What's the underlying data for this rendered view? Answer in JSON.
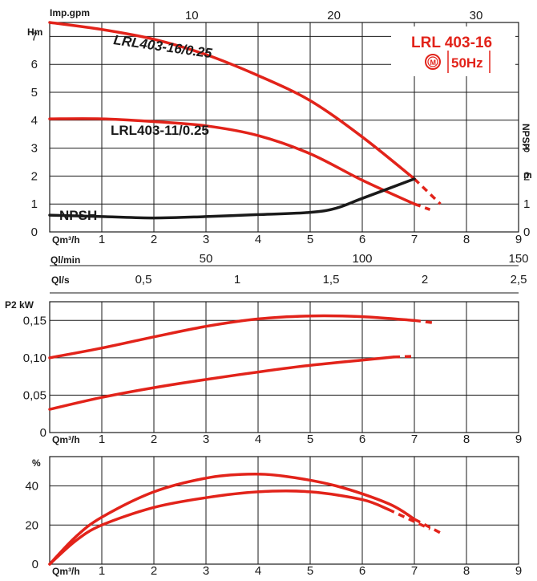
{
  "badge": {
    "model": "LRL 403-16",
    "frequency": "50Hz",
    "motor_symbol": "M"
  },
  "chart_data": [
    {
      "type": "line",
      "panel": "head",
      "ylabel": "Hm",
      "xlabel": "Qm³/h",
      "top_axis_label": "Imp.gpm",
      "top_axis_ticks": [
        "10",
        "20",
        "30"
      ],
      "right_axis_label_vertical": "NPSH",
      "right_axis_unit": "m",
      "right_axis_ticks": [
        "0",
        "1",
        "2",
        "3"
      ],
      "x_ticks": [
        "1",
        "2",
        "3",
        "4",
        "5",
        "6",
        "7",
        "8",
        "9"
      ],
      "y_ticks": [
        "0",
        "1",
        "2",
        "3",
        "4",
        "5",
        "6",
        "7"
      ],
      "xlim": [
        0,
        9
      ],
      "ylim": [
        0,
        7.5
      ],
      "series": [
        {
          "name": "LRL403-16/0.25",
          "x": [
            0,
            1,
            2,
            3,
            4,
            5,
            6,
            7
          ],
          "y": [
            7.5,
            7.25,
            6.9,
            6.35,
            5.6,
            4.7,
            3.4,
            1.9
          ],
          "ext_x": [
            7,
            7.5
          ],
          "ext_y": [
            1.9,
            1.0
          ]
        },
        {
          "name": "LRL403-11/0.25",
          "x": [
            0,
            1,
            2,
            3,
            4,
            5,
            6,
            7
          ],
          "y": [
            4.05,
            4.05,
            3.95,
            3.8,
            3.45,
            2.8,
            1.85,
            1.0
          ],
          "ext_x": [
            7,
            7.3
          ],
          "ext_y": [
            1.0,
            0.8
          ]
        },
        {
          "name": "NPSH",
          "x": [
            0,
            1,
            2,
            3,
            4,
            5,
            5.5,
            6,
            7
          ],
          "y": [
            0.6,
            0.55,
            0.5,
            0.55,
            0.62,
            0.7,
            0.85,
            1.2,
            1.9
          ]
        }
      ]
    },
    {
      "type": "line",
      "panel": "flow_units",
      "label_ql_min": "Ql/min",
      "label_ql_s": "Ql/s",
      "ql_min_ticks": [
        "50",
        "100",
        "150"
      ],
      "ql_s_ticks": [
        "0,5",
        "1",
        "1,5",
        "2",
        "2,5"
      ]
    },
    {
      "type": "line",
      "panel": "power",
      "ylabel": "P2 kW",
      "xlabel": "Qm³/h",
      "x_ticks": [
        "1",
        "2",
        "3",
        "4",
        "5",
        "6",
        "7",
        "8",
        "9"
      ],
      "y_ticks": [
        "0",
        "0,05",
        "0,10",
        "0,15"
      ],
      "xlim": [
        0,
        9
      ],
      "ylim": [
        0,
        0.175
      ],
      "series": [
        {
          "x": [
            0,
            1,
            2,
            3,
            4,
            5,
            6,
            7
          ],
          "y": [
            0.1,
            0.113,
            0.128,
            0.142,
            0.152,
            0.156,
            0.155,
            0.15
          ],
          "ext_x": [
            7,
            7.35
          ],
          "ext_y": [
            0.15,
            0.147
          ]
        },
        {
          "x": [
            0,
            1,
            2,
            3,
            4,
            5,
            6,
            6.6
          ],
          "y": [
            0.031,
            0.047,
            0.06,
            0.071,
            0.081,
            0.09,
            0.097,
            0.101
          ],
          "ext_x": [
            6.6,
            7.0
          ],
          "ext_y": [
            0.101,
            0.102
          ]
        }
      ]
    },
    {
      "type": "line",
      "panel": "efficiency",
      "ylabel": "%",
      "xlabel": "Qm³/h",
      "x_ticks": [
        "1",
        "2",
        "3",
        "4",
        "5",
        "6",
        "7",
        "8",
        "9"
      ],
      "y_ticks": [
        "0",
        "20",
        "40"
      ],
      "xlim": [
        0,
        9
      ],
      "ylim": [
        0,
        55
      ],
      "series": [
        {
          "x": [
            0,
            0.5,
            1,
            2,
            3,
            3.8,
            4.5,
            5.5,
            6.5,
            7
          ],
          "y": [
            0,
            14,
            24,
            37,
            44,
            46,
            45,
            40,
            31,
            23
          ],
          "ext_x": [
            7,
            7.5
          ],
          "ext_y": [
            23,
            16
          ]
        },
        {
          "x": [
            0,
            0.5,
            1,
            2,
            3,
            4,
            5,
            6,
            6.5
          ],
          "y": [
            0,
            12,
            20,
            29,
            34,
            37,
            37,
            33,
            28
          ],
          "ext_x": [
            6.5,
            7.3
          ],
          "ext_y": [
            28,
            18
          ]
        }
      ]
    }
  ]
}
